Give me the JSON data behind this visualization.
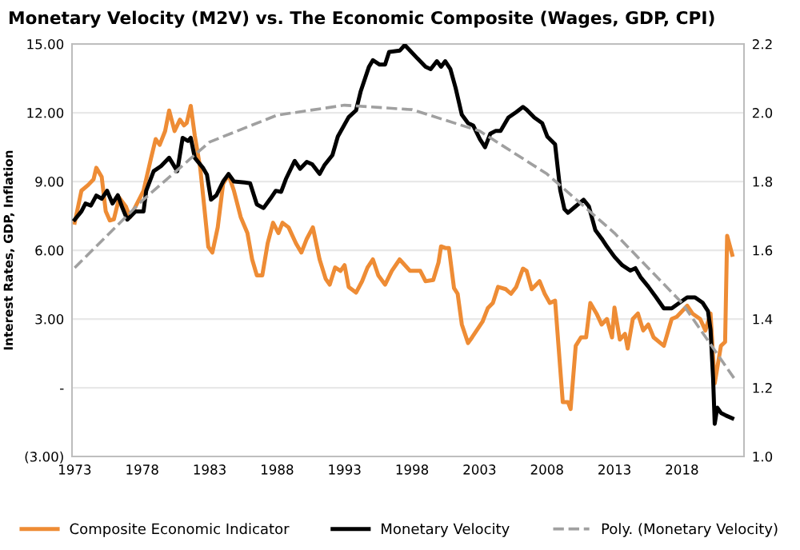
{
  "chart_data": {
    "type": "line",
    "title": "Monetary Velocity (M2V) vs. The Economic Composite (Wages, GDP, CPI)",
    "ylabel": "Interest Rates, GDP, Inflation",
    "series": [
      {
        "name": "Composite Economic Indicator",
        "color": "#ee8c35",
        "line_style": "solid",
        "x": [
          1973.0,
          1973.5,
          1974.0,
          1974.4,
          1974.6,
          1975.0,
          1975.3,
          1975.6,
          1975.9,
          1976.3,
          1976.8,
          1977.1,
          1977.5,
          1978.1,
          1978.65,
          1979.0,
          1979.3,
          1979.7,
          1980.0,
          1980.4,
          1980.8,
          1981.1,
          1981.3,
          1981.6,
          1981.9,
          1982.3,
          1982.6,
          1982.9,
          1983.2,
          1983.6,
          1984.0,
          1984.4,
          1984.8,
          1985.3,
          1985.8,
          1986.15,
          1986.5,
          1986.9,
          1987.3,
          1987.7,
          1988.1,
          1988.4,
          1988.85,
          1989.4,
          1989.8,
          1990.2,
          1990.65,
          1991.15,
          1991.6,
          1991.9,
          1992.3,
          1992.7,
          1993.0,
          1993.3,
          1993.85,
          1994.3,
          1994.7,
          1995.1,
          1995.5,
          1996.0,
          1996.5,
          1997.08,
          1997.85,
          1998.61,
          1999.0,
          1999.57,
          1999.96,
          2000.15,
          2000.46,
          2000.73,
          2001.11,
          2001.38,
          2001.69,
          2002.15,
          2002.45,
          2003.22,
          2003.61,
          2003.99,
          2004.37,
          2004.95,
          2005.33,
          2005.72,
          2006.22,
          2006.49,
          2006.87,
          2007.45,
          2007.83,
          2008.21,
          2008.6,
          2009.17,
          2009.56,
          2009.75,
          2010.13,
          2010.52,
          2010.9,
          2011.21,
          2011.67,
          2012.05,
          2012.44,
          2012.82,
          2013.0,
          2013.4,
          2013.78,
          2013.98,
          2014.36,
          2014.74,
          2015.13,
          2015.51,
          2015.9,
          2016.66,
          2017.24,
          2017.62,
          2018.39,
          2018.78,
          2019.35,
          2019.74,
          2020.12,
          2020.43,
          2020.89,
          2021.2,
          2021.35,
          2021.73
        ],
        "values": [
          7.2,
          8.6,
          8.85,
          9.1,
          9.6,
          9.2,
          7.7,
          7.3,
          7.35,
          8.3,
          7.9,
          7.45,
          7.9,
          8.6,
          10.0,
          10.85,
          10.6,
          11.2,
          12.1,
          11.2,
          11.7,
          11.45,
          11.55,
          12.3,
          11.0,
          9.6,
          7.9,
          6.15,
          5.9,
          7.0,
          8.9,
          9.3,
          8.6,
          7.45,
          6.75,
          5.6,
          4.9,
          4.9,
          6.3,
          7.2,
          6.75,
          7.2,
          7.0,
          6.3,
          5.9,
          6.5,
          7.0,
          5.6,
          4.75,
          4.5,
          5.25,
          5.1,
          5.35,
          4.4,
          4.15,
          4.65,
          5.25,
          5.6,
          4.9,
          4.5,
          5.1,
          5.6,
          5.1,
          5.1,
          4.65,
          4.7,
          5.46,
          6.17,
          6.1,
          6.1,
          4.35,
          4.1,
          2.76,
          1.95,
          2.2,
          2.88,
          3.47,
          3.7,
          4.4,
          4.3,
          4.1,
          4.4,
          5.2,
          5.1,
          4.3,
          4.65,
          4.1,
          3.7,
          3.8,
          -0.63,
          -0.63,
          -0.93,
          1.83,
          2.2,
          2.2,
          3.7,
          3.24,
          2.76,
          3.0,
          2.2,
          3.5,
          2.1,
          2.35,
          1.71,
          3.0,
          3.24,
          2.5,
          2.76,
          2.2,
          1.83,
          3.0,
          3.1,
          3.58,
          3.24,
          3.0,
          2.5,
          3.24,
          0.19,
          1.83,
          2.0,
          6.63,
          5.8
        ]
      },
      {
        "name": "Monetary Velocity",
        "color": "#000000",
        "axis": "y2",
        "line_style": "solid",
        "x": [
          1973.0,
          1973.5,
          1973.8,
          1974.2,
          1974.6,
          1975.0,
          1975.4,
          1975.8,
          1976.2,
          1976.5,
          1976.9,
          1977.5,
          1978.1,
          1978.3,
          1978.85,
          1979.4,
          1980.0,
          1980.6,
          1981.0,
          1981.4,
          1981.6,
          1981.9,
          1982.5,
          1982.8,
          1983.1,
          1983.5,
          1984.0,
          1984.4,
          1984.8,
          1985.6,
          1986.0,
          1986.5,
          1987.0,
          1987.5,
          1987.9,
          1988.3,
          1988.65,
          1989.3,
          1989.7,
          1990.2,
          1990.6,
          1991.15,
          1991.5,
          1992.1,
          1992.5,
          1993.3,
          1993.85,
          1994.2,
          1994.8,
          1995.1,
          1995.6,
          1996.0,
          1996.3,
          1997.1,
          1997.46,
          1997.85,
          1998.4,
          1999.0,
          1999.38,
          1999.84,
          2000.15,
          2000.46,
          2000.84,
          2001.23,
          2001.69,
          2002.15,
          2002.53,
          2003.03,
          2003.41,
          2003.8,
          2004.18,
          2004.56,
          2005.14,
          2005.72,
          2006.22,
          2006.49,
          2007.06,
          2007.64,
          2008.02,
          2008.6,
          2008.98,
          2009.29,
          2009.56,
          2010.13,
          2010.71,
          2011.1,
          2011.59,
          2012.05,
          2012.44,
          2013.02,
          2013.59,
          2014.17,
          2014.55,
          2014.93,
          2015.51,
          2016.09,
          2016.66,
          2017.24,
          2017.82,
          2018.39,
          2018.97,
          2019.54,
          2019.93,
          2020.12,
          2020.31,
          2020.43,
          2020.62,
          2020.89,
          2021.27,
          2021.73
        ],
        "values": [
          1.689,
          1.713,
          1.736,
          1.73,
          1.759,
          1.75,
          1.773,
          1.736,
          1.76,
          1.727,
          1.689,
          1.713,
          1.713,
          1.773,
          1.83,
          1.845,
          1.869,
          1.83,
          1.927,
          1.918,
          1.927,
          1.869,
          1.84,
          1.82,
          1.747,
          1.76,
          1.8,
          1.822,
          1.8,
          1.797,
          1.795,
          1.733,
          1.723,
          1.75,
          1.773,
          1.77,
          1.807,
          1.86,
          1.837,
          1.857,
          1.85,
          1.822,
          1.847,
          1.877,
          1.931,
          1.987,
          2.007,
          2.063,
          2.133,
          2.153,
          2.14,
          2.14,
          2.177,
          2.181,
          2.197,
          2.181,
          2.158,
          2.134,
          2.127,
          2.15,
          2.134,
          2.15,
          2.127,
          2.072,
          1.994,
          1.97,
          1.963,
          1.923,
          1.9,
          1.939,
          1.947,
          1.947,
          1.986,
          2.002,
          2.017,
          2.009,
          1.986,
          1.97,
          1.931,
          1.908,
          1.775,
          1.72,
          1.709,
          1.728,
          1.747,
          1.728,
          1.658,
          1.634,
          1.611,
          1.58,
          1.556,
          1.541,
          1.548,
          1.522,
          1.494,
          1.463,
          1.431,
          1.431,
          1.447,
          1.463,
          1.463,
          1.447,
          1.423,
          1.369,
          1.228,
          1.095,
          1.142,
          1.127,
          1.119,
          1.111
        ]
      },
      {
        "name": "Poly. (Monetary Velocity)",
        "color": "#a0a0a0",
        "axis": "y2",
        "line_style": "dashed",
        "x": [
          1973,
          1978,
          1983,
          1988,
          1993,
          1998,
          2003,
          2008,
          2013,
          2018,
          2022
        ],
        "values": [
          1.549,
          1.744,
          1.915,
          1.993,
          2.022,
          2.009,
          1.947,
          1.822,
          1.65,
          1.447,
          1.22
        ]
      }
    ],
    "xlim": [
      1972.8,
      2022.6
    ],
    "xticks": [
      1973,
      1978,
      1983,
      1988,
      1993,
      1998,
      2003,
      2008,
      2013,
      2018
    ],
    "ylim": [
      -3,
      15
    ],
    "yticks": [
      {
        "value": -3,
        "label": "(3.00)"
      },
      {
        "value": 0,
        "label": "-"
      },
      {
        "value": 3,
        "label": "3.00"
      },
      {
        "value": 6,
        "label": "6.00"
      },
      {
        "value": 9,
        "label": "9.00"
      },
      {
        "value": 12,
        "label": "12.00"
      },
      {
        "value": 15,
        "label": "15.00"
      }
    ],
    "y2lim": [
      1.0,
      2.2
    ],
    "y2ticks": [
      {
        "value": 1.0,
        "label": "1.0"
      },
      {
        "value": 1.2,
        "label": "1.2"
      },
      {
        "value": 1.4,
        "label": "1.4"
      },
      {
        "value": 1.6,
        "label": "1.6"
      },
      {
        "value": 1.8,
        "label": "1.8"
      },
      {
        "value": 2.0,
        "label": "2.0"
      },
      {
        "value": 2.2,
        "label": "2.2"
      }
    ],
    "grid": "y",
    "legend": "bottom",
    "marker": "none"
  }
}
